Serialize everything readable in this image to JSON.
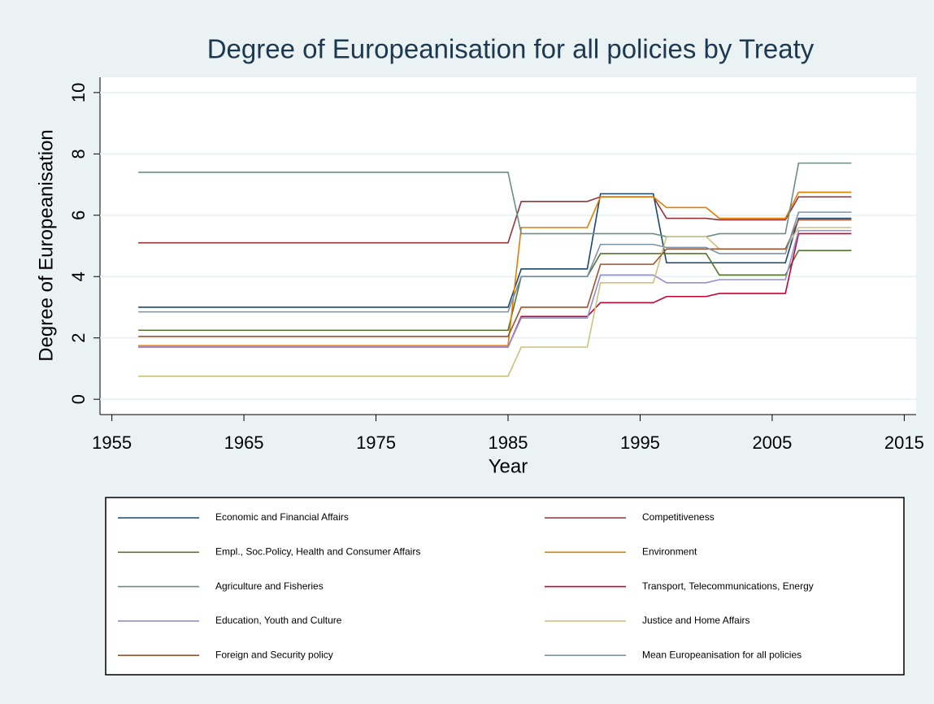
{
  "chart_data": {
    "type": "line",
    "title": "Degree of Europeanisation for all policies by Treaty",
    "x_label": "Year",
    "y_label": "Degree of Europeanisation",
    "x": [
      1957,
      1985,
      1986,
      1991,
      1992,
      1996,
      1997,
      2000,
      2001,
      2006,
      2007,
      2011
    ],
    "xlim": [
      1954.1,
      2015.9
    ],
    "xticks": [
      1955,
      1965,
      1975,
      1985,
      1995,
      2005,
      2015
    ],
    "ylim": [
      -0.5,
      10.5
    ],
    "yticks": [
      0,
      2,
      4,
      6,
      8,
      10
    ],
    "grid": true,
    "legend_position": "bottom",
    "series": [
      {
        "name": "Economic and Financial Affairs",
        "color": "#1a476f",
        "values": [
          3.0,
          3.0,
          4.25,
          4.25,
          6.7,
          6.7,
          4.45,
          4.45,
          4.45,
          4.45,
          5.9,
          5.9
        ]
      },
      {
        "name": "Competitiveness",
        "color": "#90353b",
        "values": [
          5.1,
          5.1,
          6.45,
          6.45,
          6.6,
          6.6,
          5.9,
          5.9,
          5.85,
          5.85,
          6.6,
          6.6
        ]
      },
      {
        "name": "Empl., Soc.Policy, Health and Consumer Affairs",
        "color": "#55752f",
        "values": [
          2.25,
          2.25,
          4.0,
          4.0,
          4.75,
          4.75,
          4.75,
          4.75,
          4.05,
          4.05,
          4.85,
          4.85
        ]
      },
      {
        "name": "Environment",
        "color": "#e37e00",
        "values": [
          1.75,
          1.75,
          5.6,
          5.6,
          6.6,
          6.6,
          6.25,
          6.25,
          5.9,
          5.9,
          6.75,
          6.75
        ]
      },
      {
        "name": "Agriculture and Fisheries",
        "color": "#6e8e84",
        "values": [
          7.4,
          7.4,
          5.4,
          5.4,
          5.4,
          5.4,
          5.3,
          5.3,
          5.4,
          5.4,
          7.7,
          7.7
        ]
      },
      {
        "name": "Transport, Telecommunications, Energy",
        "color": "#c10534",
        "values": [
          1.7,
          1.7,
          2.7,
          2.7,
          3.15,
          3.15,
          3.35,
          3.35,
          3.45,
          3.45,
          5.4,
          5.4
        ]
      },
      {
        "name": "Education, Youth and Culture",
        "color": "#938dd2",
        "values": [
          1.7,
          1.7,
          2.65,
          2.65,
          4.05,
          4.05,
          3.8,
          3.8,
          3.9,
          3.9,
          5.5,
          5.5
        ]
      },
      {
        "name": "Justice and Home Affairs",
        "color": "#cac27e",
        "values": [
          0.75,
          0.75,
          1.7,
          1.7,
          3.8,
          3.8,
          5.3,
          5.3,
          4.9,
          4.9,
          5.6,
          5.6
        ]
      },
      {
        "name": "Foreign and Security policy",
        "color": "#a0522d",
        "values": [
          2.05,
          2.05,
          3.0,
          3.0,
          4.4,
          4.4,
          4.9,
          4.9,
          4.9,
          4.9,
          5.85,
          5.85
        ]
      },
      {
        "name": "Mean Europeanisation for all policies",
        "color": "#7b92a8",
        "values": [
          2.85,
          2.85,
          4.0,
          4.0,
          5.05,
          5.05,
          4.95,
          4.95,
          4.75,
          4.75,
          6.1,
          6.1
        ]
      }
    ]
  }
}
